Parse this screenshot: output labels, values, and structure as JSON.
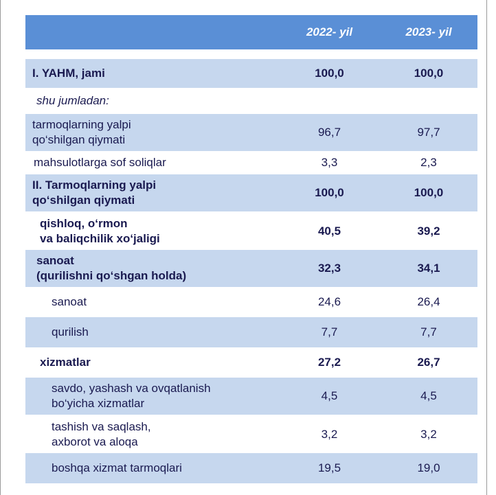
{
  "header": {
    "col1": "2022- yil",
    "col2": "2023- yil"
  },
  "rows": [
    {
      "label": "I. YAHM, jami",
      "v1": "100,0",
      "v2": "100,0"
    },
    {
      "label": "shu jumladan:",
      "v1": "",
      "v2": ""
    },
    {
      "label": "tarmoqlarning yalpi\nqo‘shilgan qiymati",
      "v1": "96,7",
      "v2": "97,7"
    },
    {
      "label": "mahsulotlarga sof soliqlar",
      "v1": "3,3",
      "v2": "2,3"
    },
    {
      "label": "II. Tarmoqlarning yalpi\nqo‘shilgan qiymati",
      "v1": "100,0",
      "v2": "100,0"
    },
    {
      "label": "qishloq, o‘rmon\nva baliqchilik xo‘jaligi",
      "v1": "40,5",
      "v2": "39,2"
    },
    {
      "label": "sanoat\n(qurilishni qo‘shgan holda)",
      "v1": "32,3",
      "v2": "34,1"
    },
    {
      "label": "sanoat",
      "v1": "24,6",
      "v2": "26,4"
    },
    {
      "label": "qurilish",
      "v1": "7,7",
      "v2": "7,7"
    },
    {
      "label": "xizmatlar",
      "v1": "27,2",
      "v2": "26,7"
    },
    {
      "label": "savdo, yashash va ovqatlanish\nbo‘yicha xizmatlar",
      "v1": "4,5",
      "v2": "4,5"
    },
    {
      "label": "tashish va saqlash,\naxborot va aloqa",
      "v1": "3,2",
      "v2": "3,2"
    },
    {
      "label": "boshqa xizmat tarmoqlari",
      "v1": "19,5",
      "v2": "19,0"
    }
  ]
}
